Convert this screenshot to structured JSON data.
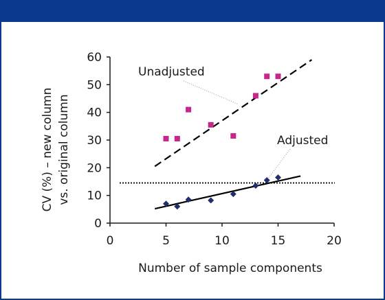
{
  "chart_data": {
    "type": "scatter",
    "title": "",
    "xlabel": "Number of sample components",
    "ylabel_lines": [
      "CV (%) – new column",
      "vs. original column"
    ],
    "xlim": [
      0,
      20
    ],
    "ylim": [
      0,
      60
    ],
    "x_ticks": [
      0,
      5,
      10,
      15,
      20
    ],
    "y_ticks": [
      0,
      10,
      20,
      30,
      40,
      50,
      60
    ],
    "grid": false,
    "threshold_line": {
      "y": 14.5,
      "style": "dotted"
    },
    "series": [
      {
        "name": "Unadjusted",
        "marker": "square",
        "color": "#c4288a",
        "points": [
          {
            "x": 5,
            "y": 30.5
          },
          {
            "x": 6,
            "y": 30.5
          },
          {
            "x": 7,
            "y": 41
          },
          {
            "x": 9,
            "y": 35.5
          },
          {
            "x": 11,
            "y": 31.5
          },
          {
            "x": 13,
            "y": 46
          },
          {
            "x": 14,
            "y": 53
          },
          {
            "x": 15,
            "y": 53
          }
        ],
        "trend": {
          "style": "dashed",
          "x0": 4,
          "y0": 20.5,
          "x1": 18,
          "y1": 59
        }
      },
      {
        "name": "Adjusted",
        "marker": "diamond",
        "color": "#1f2f6e",
        "points": [
          {
            "x": 5,
            "y": 7
          },
          {
            "x": 6,
            "y": 6
          },
          {
            "x": 7,
            "y": 8.5
          },
          {
            "x": 9,
            "y": 8.2
          },
          {
            "x": 11,
            "y": 10.5
          },
          {
            "x": 13,
            "y": 13.5
          },
          {
            "x": 14,
            "y": 15.5
          },
          {
            "x": 15,
            "y": 16.5
          }
        ],
        "trend": {
          "style": "solid",
          "x0": 4,
          "y0": 5.2,
          "x1": 17,
          "y1": 17
        }
      }
    ],
    "annotations": [
      {
        "text": "Unadjusted",
        "series": 0
      },
      {
        "text": "Adjusted",
        "series": 1
      }
    ]
  },
  "colors": {
    "banner": "#0b3a8c",
    "frame": "#0b3a8c",
    "unadjusted": "#c4288a",
    "adjusted": "#1f2f6e"
  }
}
